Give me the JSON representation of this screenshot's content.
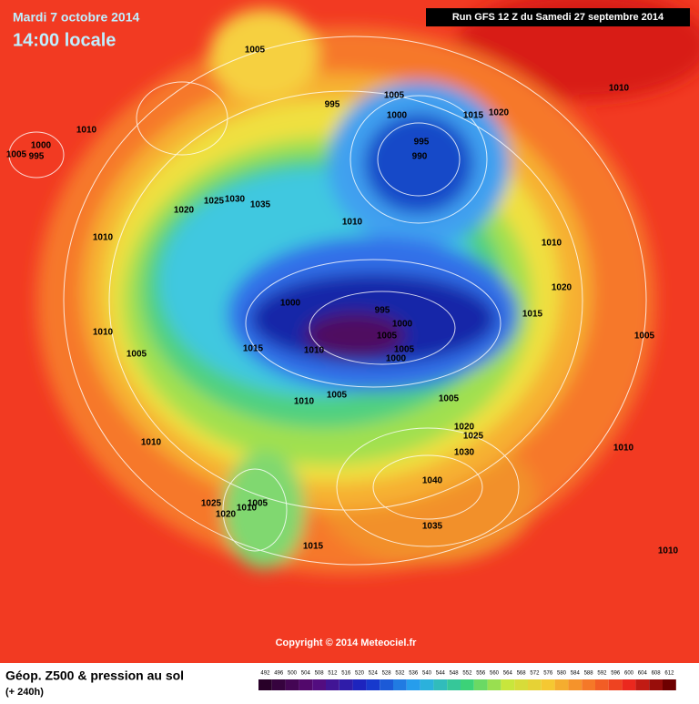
{
  "header": {
    "date": "Mardi 7 octobre 2014",
    "time": "14:00 locale",
    "run": "Run GFS 12 Z du Samedi 27 septembre 2014"
  },
  "copyright": "Copyright © 2014 Meteociel.fr",
  "footer": {
    "title": "Géop. Z500 & pression au sol",
    "lead": "(+ 240h)"
  },
  "scale": {
    "values": [
      492,
      496,
      500,
      504,
      508,
      512,
      516,
      520,
      524,
      528,
      532,
      536,
      540,
      544,
      548,
      552,
      556,
      560,
      564,
      568,
      572,
      576,
      580,
      584,
      588,
      592,
      596,
      600,
      604,
      608,
      612
    ]
  },
  "isobars": [
    1005,
    1010,
    995,
    1005,
    1015,
    1020,
    1000,
    1010,
    1000,
    1005,
    995,
    995,
    990,
    1025,
    1030,
    1035,
    1020,
    1010,
    1010,
    1010,
    1020,
    1000,
    995,
    1000,
    1015,
    1005,
    1005,
    1010,
    1005,
    1015,
    1010,
    1005,
    1000,
    1010,
    1005,
    1005,
    1020,
    1025,
    1030,
    1010,
    1010,
    1040,
    1025,
    1020,
    1010,
    1005,
    1035,
    1015,
    1010
  ]
}
